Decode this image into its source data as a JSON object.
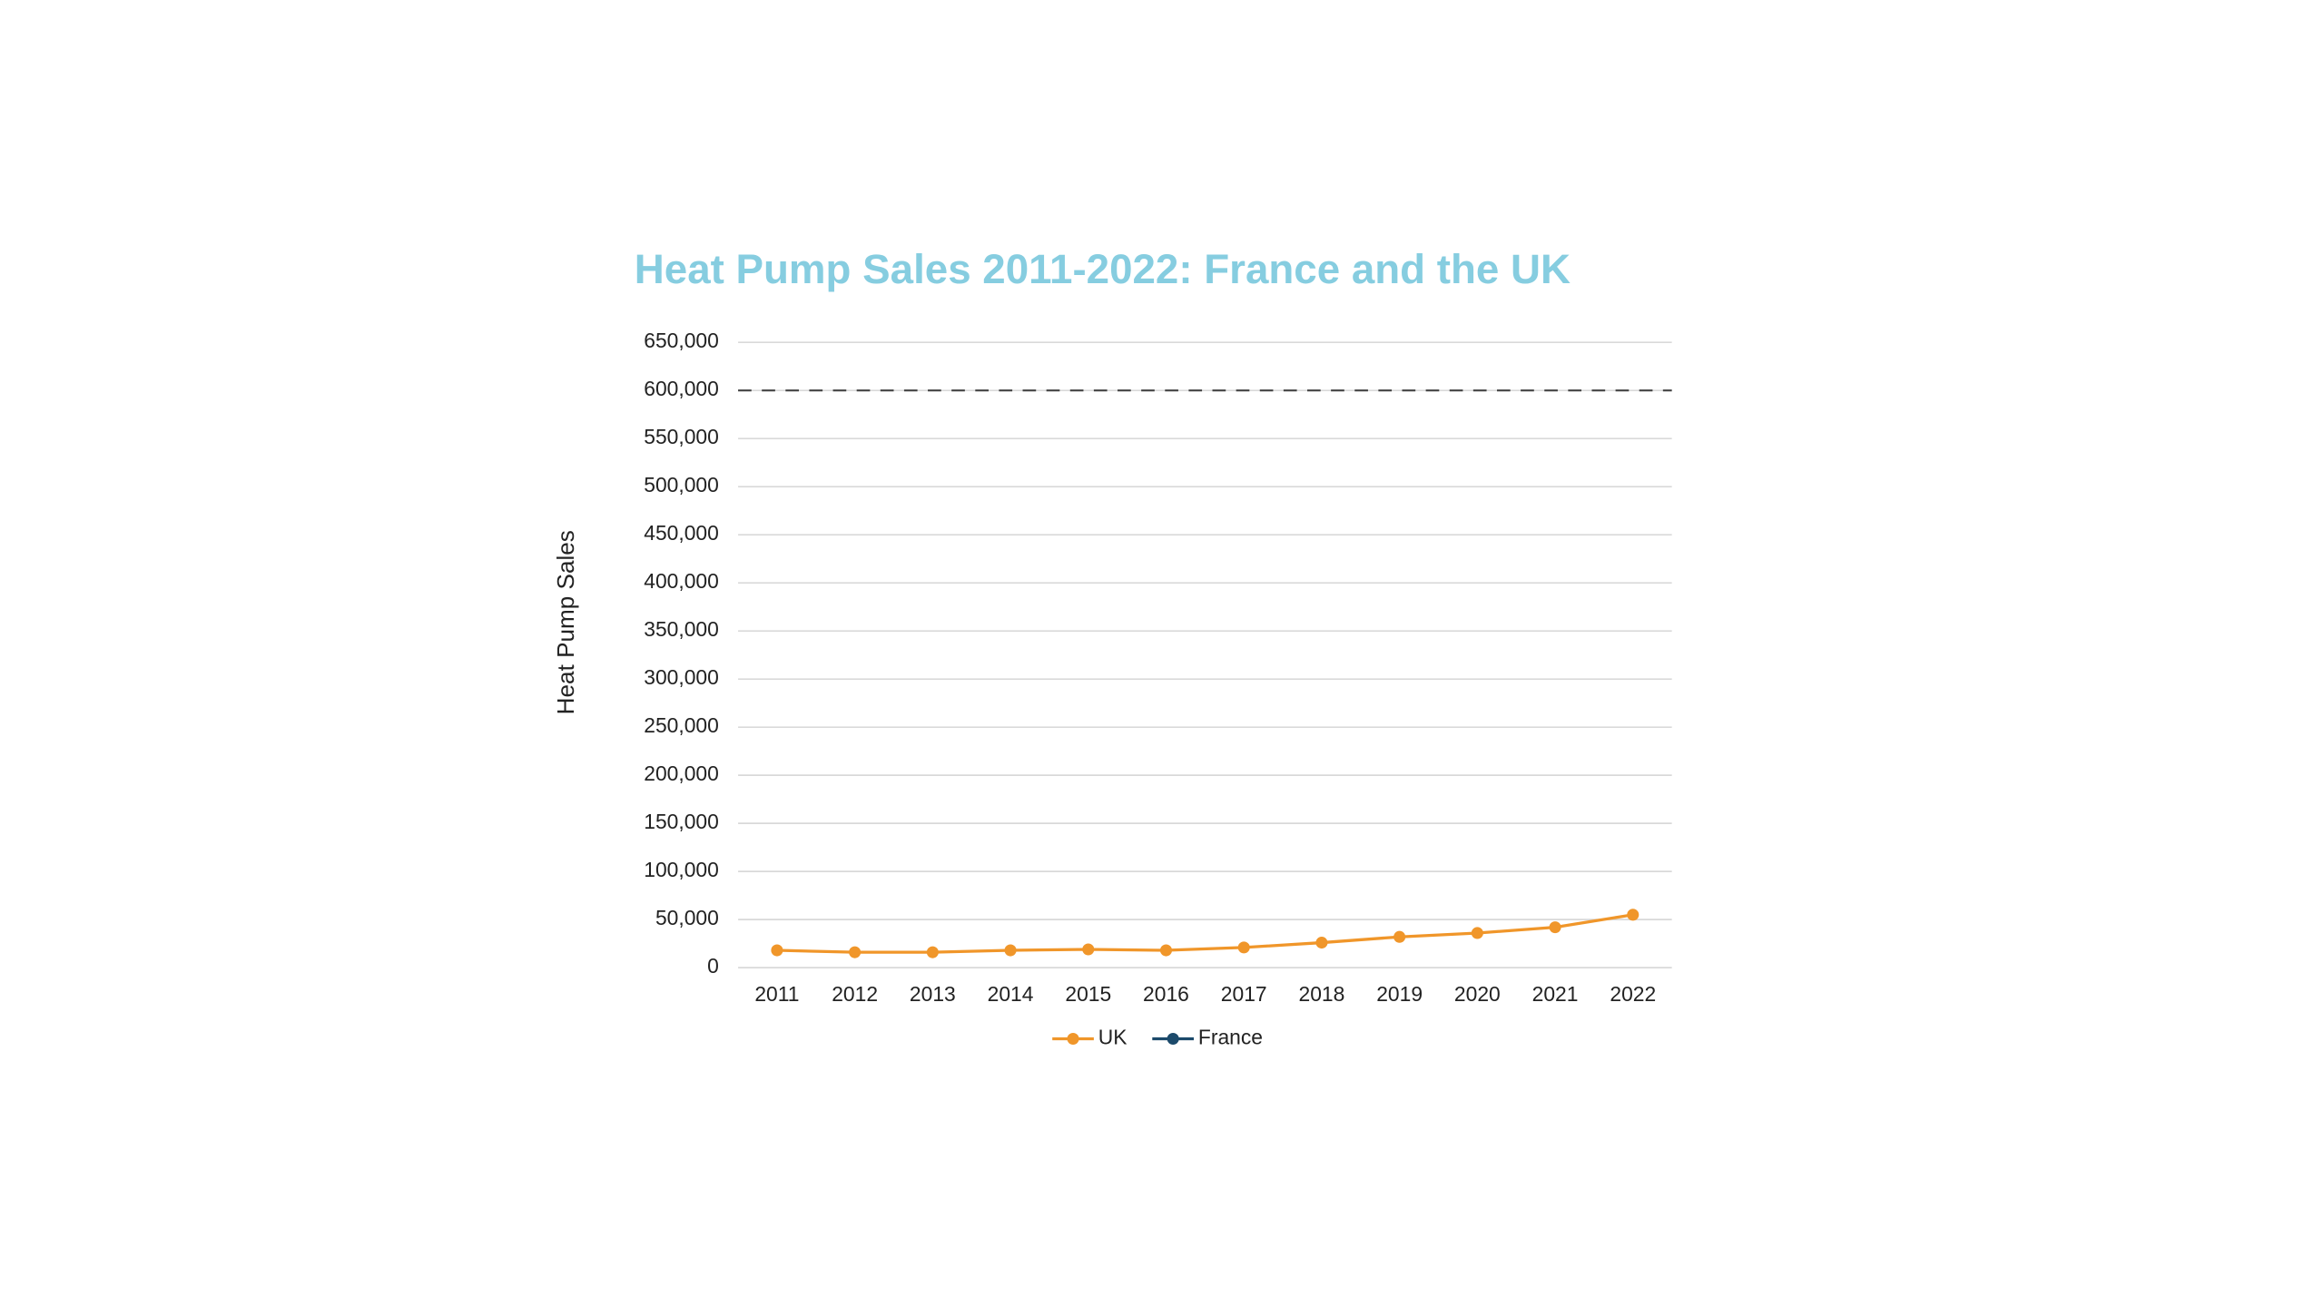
{
  "chart_data": {
    "type": "line",
    "title": "Heat Pump Sales 2011-2022: France and the UK",
    "y_label": "Heat Pump Sales",
    "categories": [
      "2011",
      "2012",
      "2013",
      "2014",
      "2015",
      "2016",
      "2017",
      "2018",
      "2019",
      "2020",
      "2021",
      "2022"
    ],
    "series": [
      {
        "name": "UK",
        "color": "#f0962a",
        "values": [
          18000,
          16000,
          16000,
          18000,
          19000,
          18000,
          21000,
          26000,
          32000,
          36000,
          42000,
          55000
        ]
      },
      {
        "name": "France",
        "color": "#1c4a6b",
        "values": [
          null,
          null,
          null,
          null,
          null,
          null,
          null,
          null,
          null,
          null,
          null,
          null
        ]
      }
    ],
    "reference_line": {
      "value": 600000,
      "color": "#444444"
    },
    "ylim": [
      0,
      650000
    ],
    "yticks": [
      0,
      {
        "value": 50000,
        "label": "50,000"
      },
      {
        "value": 100000,
        "label": "100,000"
      },
      {
        "value": 150000,
        "label": "150,000"
      },
      {
        "value": 200000,
        "label": "200,000"
      },
      {
        "value": 250000,
        "label": "250,000"
      },
      {
        "value": 300000,
        "label": "300,000"
      },
      {
        "value": 350000,
        "label": "350,000"
      },
      {
        "value": 400000,
        "label": "400,000"
      },
      {
        "value": 450000,
        "label": "450,000"
      },
      {
        "value": 500000,
        "label": "500,000"
      },
      {
        "value": 550000,
        "label": "550,000"
      },
      {
        "value": 600000,
        "label": "600,000"
      },
      {
        "value": 650000,
        "label": "650,000"
      }
    ],
    "grid": true,
    "legend": "bottom"
  }
}
